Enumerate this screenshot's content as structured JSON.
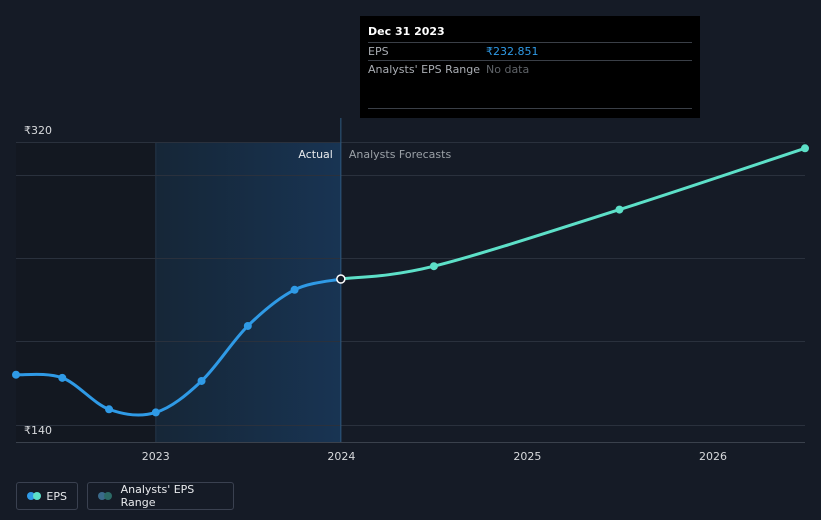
{
  "chart_data": {
    "type": "line",
    "currency_symbol": "₹",
    "y_tick_labels": [
      "₹320",
      "₹140"
    ],
    "ylim": [
      140,
      320
    ],
    "x_tick_labels": [
      "2023",
      "2024",
      "2025",
      "2026"
    ],
    "xlim": [
      "2022-04-01",
      "2026-07-01"
    ],
    "region_labels": {
      "actual": "Actual",
      "forecast": "Analysts Forecasts"
    },
    "series": [
      {
        "name": "EPS",
        "role": "actual",
        "color": "#2f9ae6",
        "points": [
          {
            "x": "2022-04-01",
            "y": 172
          },
          {
            "x": "2022-07-01",
            "y": 170
          },
          {
            "x": "2022-10-01",
            "y": 150
          },
          {
            "x": "2023-01-01",
            "y": 148
          },
          {
            "x": "2023-04-01",
            "y": 168
          },
          {
            "x": "2023-07-01",
            "y": 203
          },
          {
            "x": "2023-10-01",
            "y": 226
          },
          {
            "x": "2023-12-31",
            "y": 232.851
          }
        ]
      },
      {
        "name": "EPS",
        "role": "forecast",
        "color": "#5de0c8",
        "points": [
          {
            "x": "2023-12-31",
            "y": 232.851
          },
          {
            "x": "2024-07-01",
            "y": 241
          },
          {
            "x": "2025-07-01",
            "y": 277
          },
          {
            "x": "2026-07-01",
            "y": 316
          }
        ]
      }
    ],
    "highlight_point": {
      "x": "2023-12-31",
      "y": 232.851
    }
  },
  "tooltip": {
    "date": "Dec 31 2023",
    "eps_label": "EPS",
    "eps_value": "₹232.851",
    "range_label": "Analysts' EPS Range",
    "range_value": "No data"
  },
  "legend": {
    "items": [
      {
        "label": "EPS",
        "colors": [
          "#2f9ae6",
          "#5de0c8"
        ]
      },
      {
        "label": "Analysts' EPS Range",
        "colors": [
          "#3a6a8a",
          "#2c6a66"
        ]
      }
    ]
  }
}
